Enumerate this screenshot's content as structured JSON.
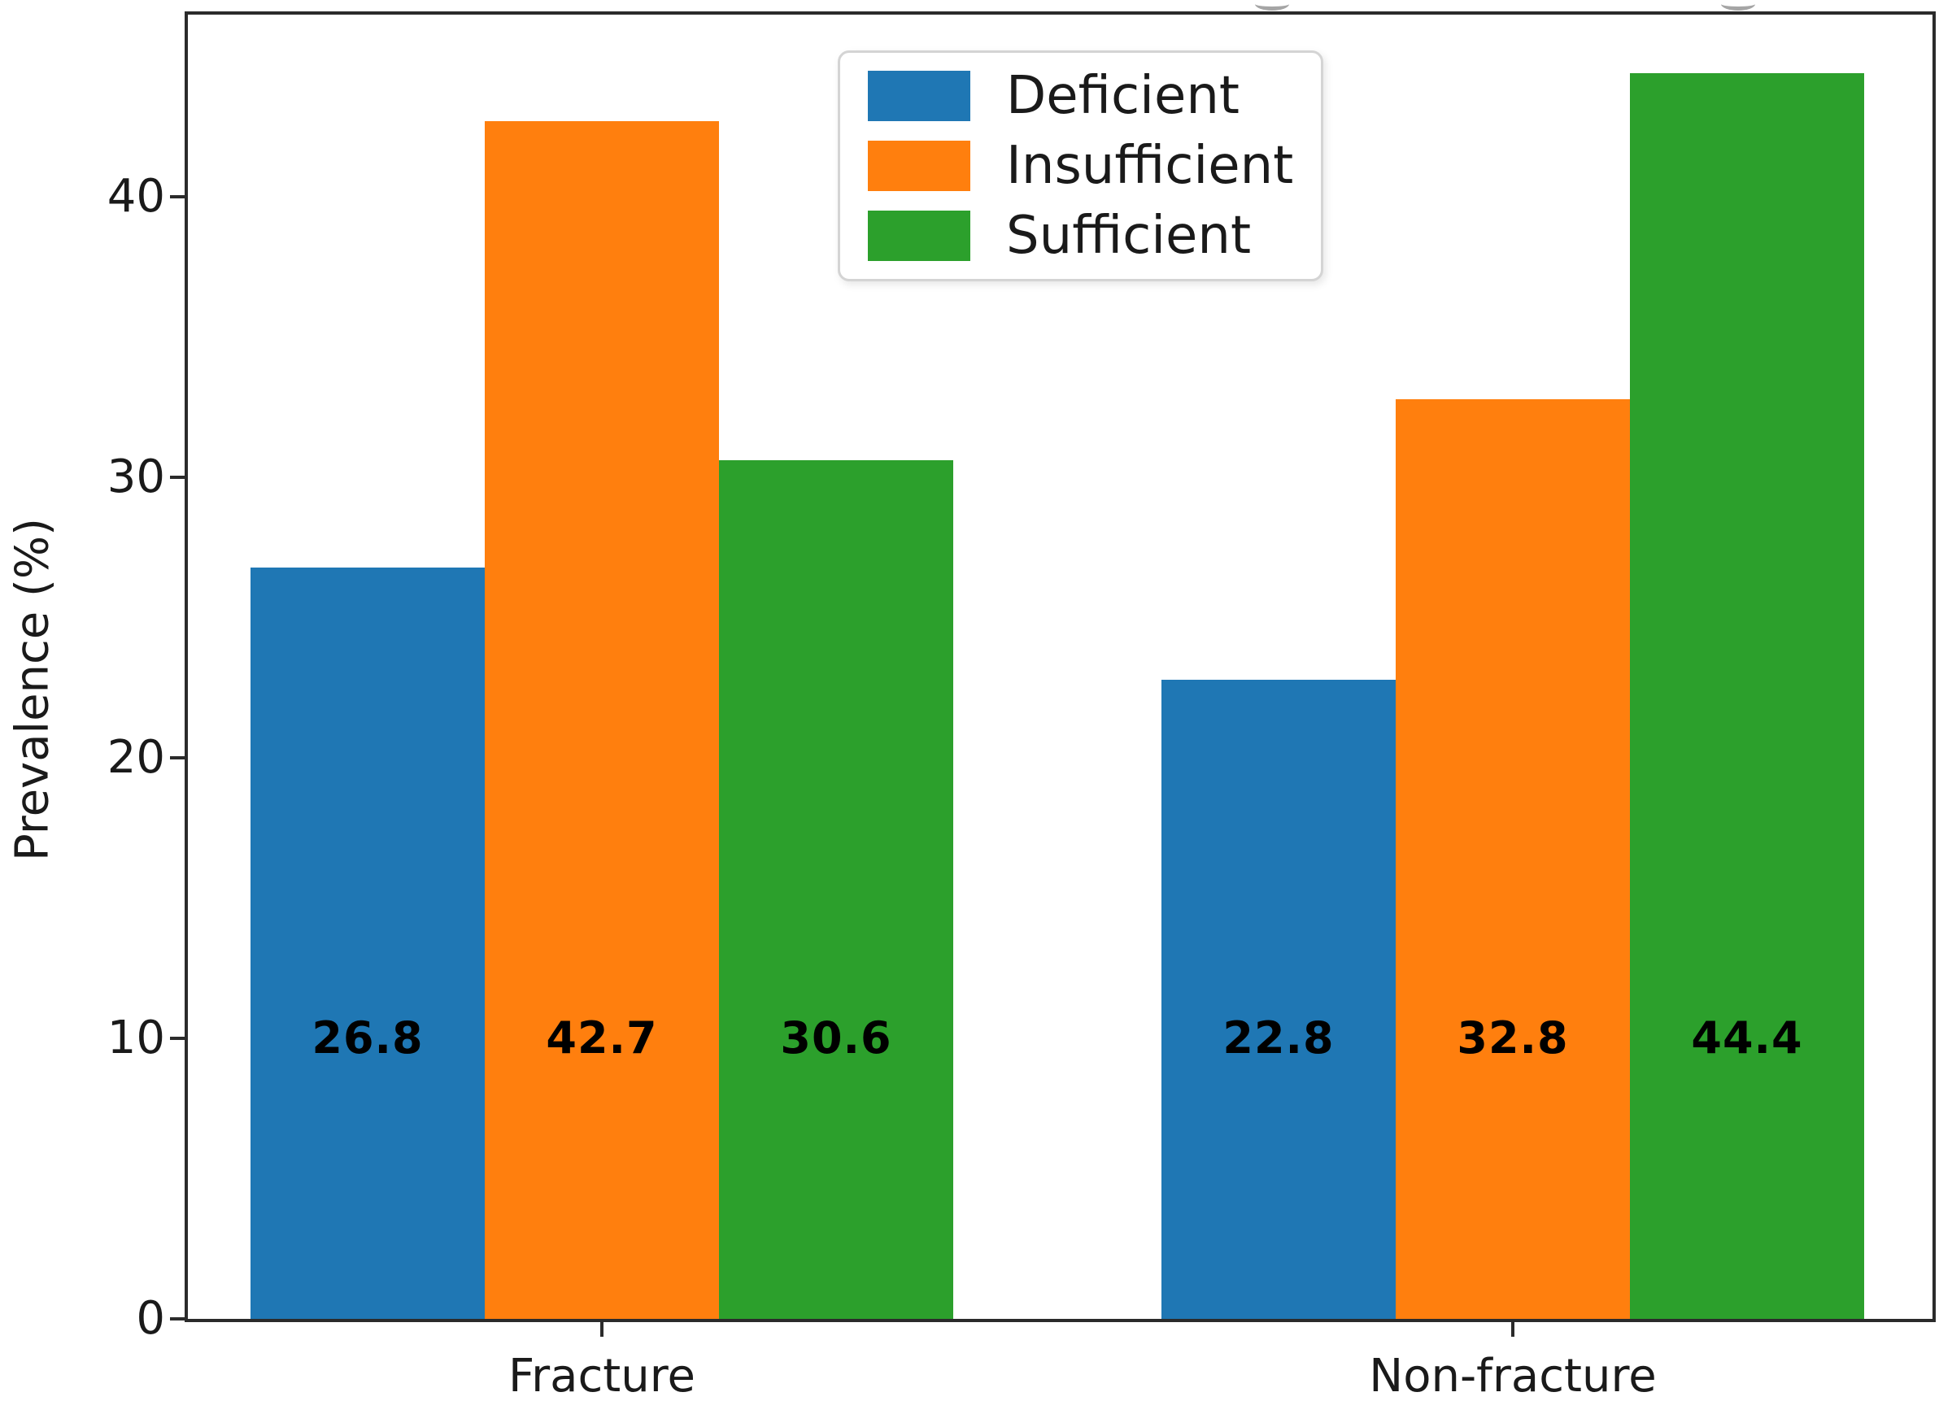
{
  "chart_data": {
    "type": "bar",
    "title": "",
    "categories": [
      "Fracture",
      "Non-fracture"
    ],
    "series": [
      {
        "name": "Deficient",
        "color": "#1f77b4",
        "values": [
          26.8,
          22.8
        ]
      },
      {
        "name": "Insufficient",
        "color": "#ff7f0e",
        "values": [
          42.7,
          32.8
        ]
      },
      {
        "name": "Sufficient",
        "color": "#2ca02c",
        "values": [
          30.6,
          44.4
        ]
      }
    ],
    "bar_value_labels": [
      [
        "26.8",
        "42.7",
        "30.6"
      ],
      [
        "22.8",
        "32.8",
        "44.4"
      ]
    ],
    "xlabel": "",
    "ylabel": "Prevalence (%)",
    "yticks": [
      0,
      10,
      20,
      30,
      40
    ],
    "ylim": [
      0,
      46.5
    ],
    "grid": false,
    "legend_position": "upper center inside plot",
    "legend_entries": [
      "Deficient",
      "Insufficient",
      "Sufficient"
    ]
  },
  "figure": {
    "background_color": "#ffffff",
    "spine_color": "#2b2b2b",
    "text_color": "#1a1a1a",
    "top_edge_artifacts": "two tiny gray cropped glyph fragments from a cut-off title line (illegible)"
  }
}
